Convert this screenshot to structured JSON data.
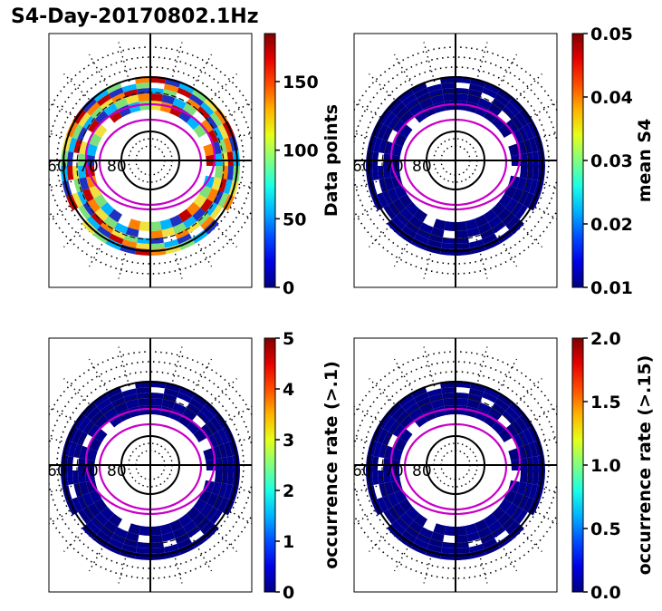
{
  "title": "S4-Day-20170802.1Hz",
  "chart_data": [
    {
      "type": "heatmap",
      "projection": "polar",
      "ring_labels": [
        "60",
        "70",
        "80"
      ],
      "colorbar": {
        "label": "Data points",
        "range": [
          0,
          185
        ],
        "ticks": [
          "0",
          "50",
          "100",
          "150"
        ],
        "tick_values": [
          0,
          50,
          100,
          150
        ],
        "colormap": "jet"
      },
      "ring_colors": [
        "#2030c0",
        "#00b4ff",
        "#7ee07a",
        "#f0e040",
        "#ff8000",
        "#c00000"
      ]
    },
    {
      "type": "heatmap",
      "projection": "polar",
      "ring_labels": [
        "60",
        "70",
        "80"
      ],
      "colorbar": {
        "label": "mean S4",
        "range": [
          0.01,
          0.05
        ],
        "ticks": [
          "0.01",
          "0.02",
          "0.03",
          "0.04",
          "0.05"
        ],
        "tick_values": [
          0.01,
          0.02,
          0.03,
          0.04,
          0.05
        ],
        "colormap": "jet"
      },
      "ring_colors": [
        "#00007f",
        "#00008f"
      ]
    },
    {
      "type": "heatmap",
      "projection": "polar",
      "ring_labels": [
        "60",
        "70",
        "80"
      ],
      "colorbar": {
        "label": "occurrence rate (>.1)",
        "range": [
          0,
          5
        ],
        "ticks": [
          "0",
          "1",
          "2",
          "3",
          "4",
          "5"
        ],
        "tick_values": [
          0,
          1,
          2,
          3,
          4,
          5
        ],
        "colormap": "jet"
      },
      "ring_colors": [
        "#00007f",
        "#00008f"
      ]
    },
    {
      "type": "heatmap",
      "projection": "polar",
      "ring_labels": [
        "60",
        "70",
        "80"
      ],
      "colorbar": {
        "label": "occurrence rate (>.15)",
        "range": [
          0,
          2
        ],
        "ticks": [
          "0.0",
          "0.5",
          "1.0",
          "1.5",
          "2.0"
        ],
        "tick_values": [
          0,
          0.5,
          1,
          1.5,
          2
        ],
        "colormap": "jet"
      },
      "ring_colors": [
        "#00007f",
        "#00008f"
      ]
    }
  ]
}
